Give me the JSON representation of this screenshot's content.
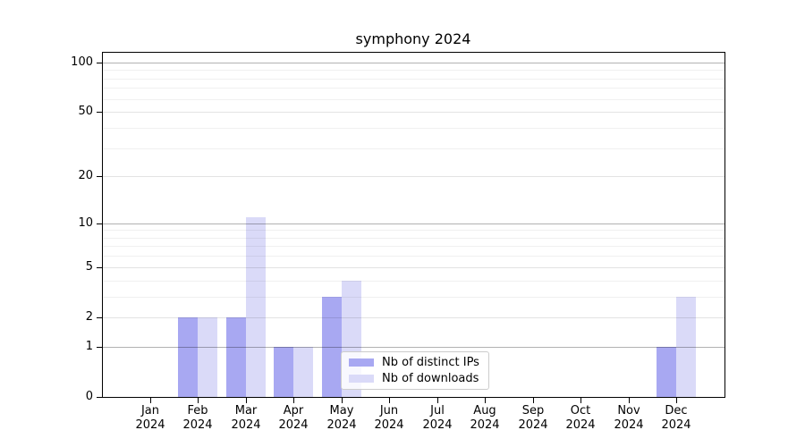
{
  "chart_data": {
    "type": "bar",
    "title": "symphony 2024",
    "categories": [
      "Jan",
      "Feb",
      "Mar",
      "Apr",
      "May",
      "Jun",
      "Jul",
      "Aug",
      "Sep",
      "Oct",
      "Nov",
      "Dec"
    ],
    "category_year": "2024",
    "series": [
      {
        "name": "Nb of distinct IPs",
        "color": "#a8a8f2",
        "values": [
          0,
          2,
          2,
          1,
          3,
          0,
          0,
          0,
          0,
          0,
          0,
          1
        ]
      },
      {
        "name": "Nb of downloads",
        "color": "#dadaf8",
        "values": [
          0,
          2,
          11,
          1,
          4,
          0,
          0,
          0,
          0,
          0,
          0,
          3
        ]
      }
    ],
    "yscale": "log1p",
    "ylim": [
      0,
      116
    ],
    "xlabel": "",
    "ylabel": "",
    "grid": true,
    "legend_position": "inside lower center-left",
    "y_ticks": [
      {
        "value": 0,
        "label": "0",
        "weight": "axis"
      },
      {
        "value": 1,
        "label": "1",
        "weight": "major"
      },
      {
        "value": 2,
        "label": "2",
        "weight": "labeled-minor"
      },
      {
        "value": 5,
        "label": "5",
        "weight": "labeled-minor"
      },
      {
        "value": 10,
        "label": "10",
        "weight": "major"
      },
      {
        "value": 20,
        "label": "20",
        "weight": "labeled-minor"
      },
      {
        "value": 50,
        "label": "50",
        "weight": "labeled-minor"
      },
      {
        "value": 100,
        "label": "100",
        "weight": "major"
      }
    ],
    "y_minor_ticks": [
      3,
      4,
      6,
      7,
      8,
      9,
      30,
      40,
      60,
      70,
      80,
      90
    ]
  },
  "colors": {
    "grid_major": "rgba(0,0,0,0.30)",
    "grid_labeled_minor": "rgba(0,0,0,0.11)",
    "grid_minor": "rgba(0,0,0,0.06)",
    "axis": "#000000",
    "legend_border": "#cccccc",
    "background": "#ffffff"
  }
}
